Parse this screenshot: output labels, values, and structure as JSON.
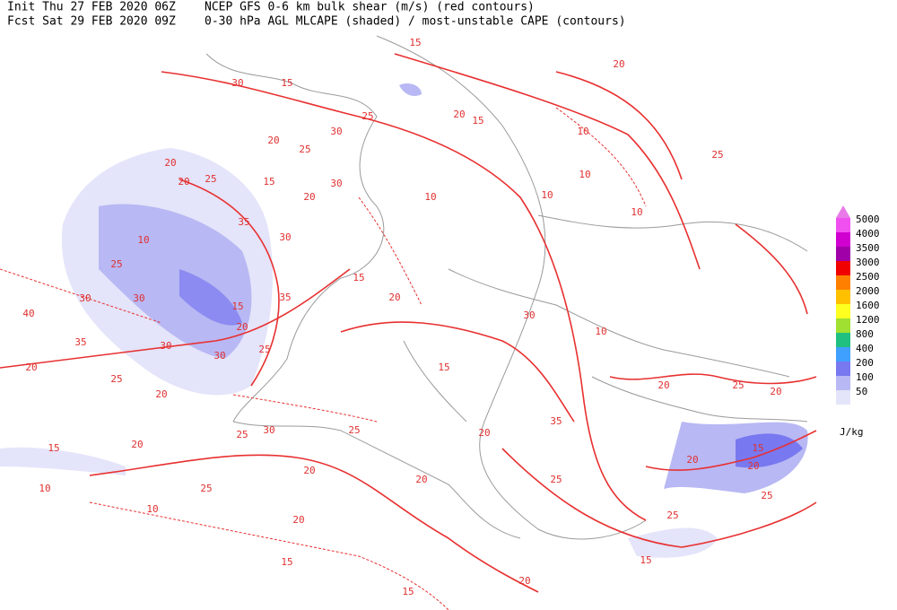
{
  "header": {
    "init": "Init  Thu 27 FEB 2020 06Z",
    "fcst": "Fcst Sat 29 FEB 2020 09Z",
    "line1": "NCEP GFS 0-6 km bulk shear (m/s) (red contours)",
    "line2": "0-30 hPa AGL MLCAPE (shaded) / most-unstable CAPE (contours)"
  },
  "legend": {
    "unit": "J/kg",
    "top_color": "#e87ae8",
    "items": [
      {
        "label": "5000",
        "color": "#f050f0"
      },
      {
        "label": "4000",
        "color": "#d000d0"
      },
      {
        "label": "3500",
        "color": "#a000a8"
      },
      {
        "label": "3000",
        "color": "#f00000"
      },
      {
        "label": "2500",
        "color": "#ff8000"
      },
      {
        "label": "2000",
        "color": "#ffc000"
      },
      {
        "label": "1600",
        "color": "#ffff20"
      },
      {
        "label": "1200",
        "color": "#a0e030"
      },
      {
        "label": "800",
        "color": "#20c080"
      },
      {
        "label": "400",
        "color": "#40a0ff"
      },
      {
        "label": "200",
        "color": "#7878f0"
      },
      {
        "label": "100",
        "color": "#b8b8f4"
      },
      {
        "label": "50",
        "color": "#e4e4fa"
      }
    ]
  },
  "contour_labels": [
    "15",
    "20",
    "30",
    "15",
    "25",
    "20",
    "15",
    "20",
    "25",
    "10",
    "30",
    "10",
    "25",
    "20",
    "20",
    "30",
    "15",
    "25",
    "10",
    "20",
    "10",
    "35",
    "30",
    "10",
    "25",
    "15",
    "30",
    "30",
    "35",
    "40",
    "20",
    "35",
    "30",
    "30",
    "25",
    "20",
    "25",
    "20",
    "25",
    "20",
    "15",
    "25",
    "30",
    "20",
    "25",
    "35",
    "20",
    "10",
    "20",
    "25",
    "20",
    "10",
    "15",
    "15",
    "20",
    "25",
    "25",
    "20",
    "15",
    "20",
    "20",
    "25",
    "15",
    "20",
    "30",
    "10",
    "15",
    "20",
    "15",
    "10"
  ]
}
